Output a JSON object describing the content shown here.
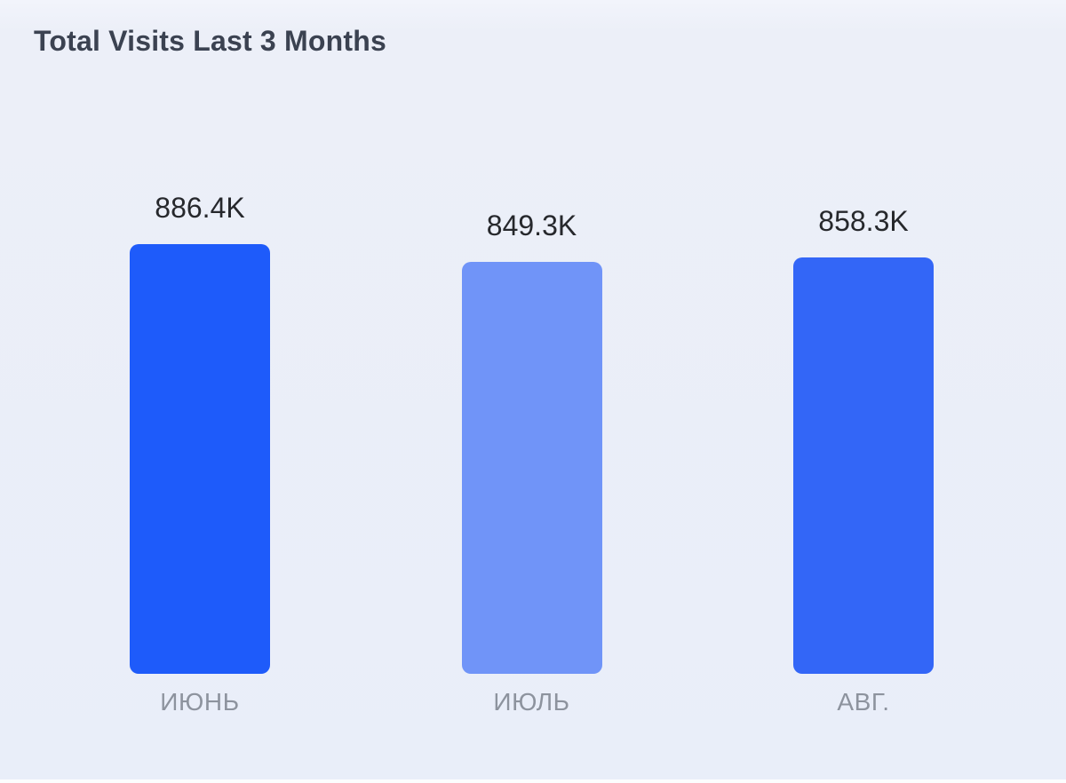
{
  "title": "Total Visits Last 3 Months",
  "chart_data": {
    "type": "bar",
    "title": "Total Visits Last 3 Months",
    "categories": [
      "ИЮНЬ",
      "ИЮЛЬ",
      "АВГ."
    ],
    "values": [
      886400,
      849300,
      858300
    ],
    "value_labels": [
      "886.4K",
      "849.3K",
      "858.3K"
    ],
    "bar_colors": [
      "#1E5BFA",
      "#7094F8",
      "#3366F7"
    ],
    "xlabel": "",
    "ylabel": "",
    "ylim": [
      0,
      886400
    ],
    "grid": false,
    "legend": "none",
    "background_color": "#ECEFF8",
    "value_label_color": "#26282C",
    "category_label_color": "#8D939E",
    "title_color": "#3B4251"
  }
}
